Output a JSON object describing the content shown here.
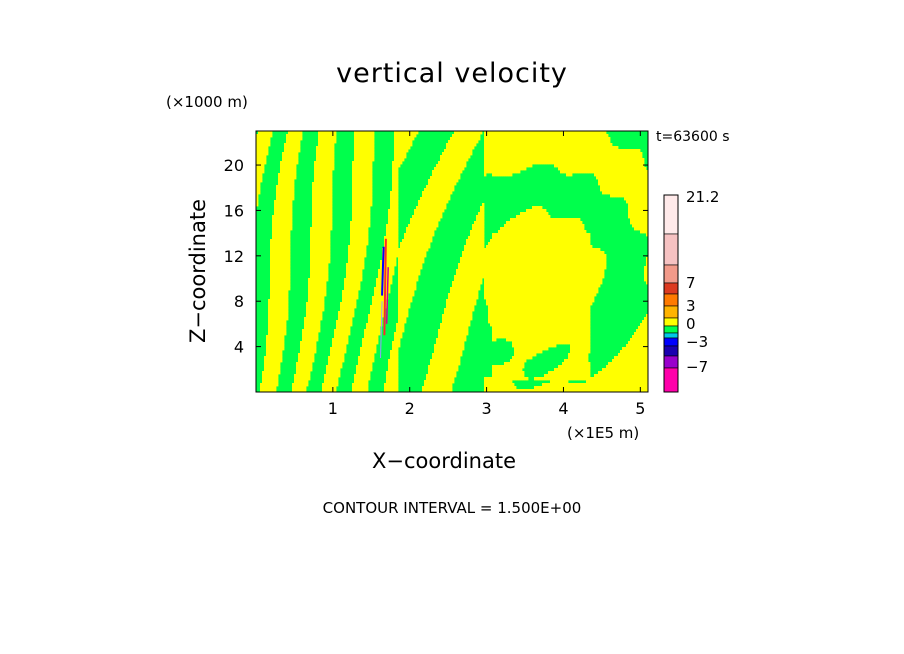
{
  "chart_data": {
    "type": "heatmap",
    "title": "vertical velocity",
    "xlabel": "X−coordinate",
    "ylabel": "Z−coordinate",
    "x_unit_label": "(×1E5 m)",
    "z_unit_label": "(×1000 m)",
    "time_label": "t=63600 s",
    "contour_interval_label": "CONTOUR INTERVAL = 1.500E+00",
    "xlim": [
      0,
      5.1
    ],
    "ylim": [
      0,
      23
    ],
    "x_ticks": [
      1,
      2,
      3,
      4,
      5
    ],
    "y_ticks": [
      4,
      8,
      12,
      16,
      20
    ],
    "dominant_field_colors": {
      "near_zero_positive": "#ffff00",
      "near_zero_negative": "#00ff4c"
    },
    "colorbar": {
      "labels": [
        "21.2",
        "7",
        "3",
        "0",
        "−3",
        "−7"
      ],
      "levels": [
        21.2,
        7,
        3,
        0,
        -3,
        -7
      ],
      "colors_top_to_bottom": [
        "#ffeaea",
        "#f6c2c2",
        "#f29a8a",
        "#dc3a20",
        "#ff7a00",
        "#ffb300",
        "#ffff00",
        "#00ff4c",
        "#00c8e6",
        "#0000ff",
        "#1a00b0",
        "#9900cc",
        "#ff00aa"
      ]
    }
  }
}
